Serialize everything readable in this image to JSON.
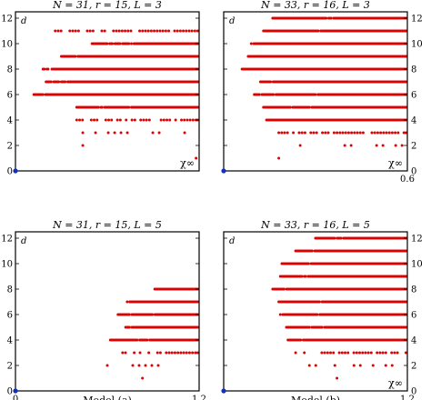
{
  "colors": {
    "points": "#e00000",
    "origin": "#1030c0",
    "frame": "#000000"
  },
  "chart_data": [
    {
      "type": "scatter",
      "title": "N = 31, r = 15, L = 3",
      "xlabel": "",
      "ylabel": "d",
      "corner_label": "χ∞",
      "xlim": [
        0,
        0.6
      ],
      "ylim": [
        0,
        12.5
      ],
      "x_tick_labels": [
        "",
        ""
      ],
      "y_ticks": [
        0,
        2,
        4,
        6,
        8,
        10,
        12
      ],
      "y_axis_side": "left",
      "rows": [
        {
          "d": 1,
          "x_start": 0.59,
          "x_end": 0.6,
          "density": "sparse"
        },
        {
          "d": 2,
          "x_start": 0.22,
          "x_end": 0.22,
          "density": "sparse"
        },
        {
          "d": 3,
          "x_start": 0.22,
          "x_end": 0.6,
          "density": "sparse"
        },
        {
          "d": 4,
          "x_start": 0.2,
          "x_end": 0.6,
          "density": "medium"
        },
        {
          "d": 5,
          "x_start": 0.2,
          "x_end": 0.6,
          "density": "dense"
        },
        {
          "d": 6,
          "x_start": 0.06,
          "x_end": 0.6,
          "density": "dense"
        },
        {
          "d": 7,
          "x_start": 0.1,
          "x_end": 0.6,
          "density": "dense"
        },
        {
          "d": 8,
          "x_start": 0.09,
          "x_end": 0.6,
          "density": "dense"
        },
        {
          "d": 9,
          "x_start": 0.15,
          "x_end": 0.6,
          "density": "dense"
        },
        {
          "d": 10,
          "x_start": 0.25,
          "x_end": 0.6,
          "density": "dense"
        },
        {
          "d": 11,
          "x_start": 0.13,
          "x_end": 0.6,
          "density": "medium"
        }
      ],
      "origin_point": [
        0,
        0
      ]
    },
    {
      "type": "scatter",
      "title": "N = 33, r = 16, L = 3",
      "xlabel": "",
      "ylabel": "d",
      "corner_label": "χ∞",
      "xlim": [
        0,
        0.6
      ],
      "ylim": [
        0,
        12.5
      ],
      "x_tick_labels": [
        "",
        "0.6"
      ],
      "y_ticks": [
        0,
        2,
        4,
        6,
        8,
        10,
        12
      ],
      "y_axis_side": "right",
      "rows": [
        {
          "d": 1,
          "x_start": 0.18,
          "x_end": 0.18,
          "density": "sparse"
        },
        {
          "d": 2,
          "x_start": 0.25,
          "x_end": 0.6,
          "density": "sparse"
        },
        {
          "d": 3,
          "x_start": 0.18,
          "x_end": 0.6,
          "density": "medium"
        },
        {
          "d": 4,
          "x_start": 0.14,
          "x_end": 0.6,
          "density": "dense"
        },
        {
          "d": 5,
          "x_start": 0.13,
          "x_end": 0.6,
          "density": "dense"
        },
        {
          "d": 6,
          "x_start": 0.1,
          "x_end": 0.6,
          "density": "dense"
        },
        {
          "d": 7,
          "x_start": 0.12,
          "x_end": 0.6,
          "density": "dense"
        },
        {
          "d": 8,
          "x_start": 0.06,
          "x_end": 0.6,
          "density": "dense"
        },
        {
          "d": 9,
          "x_start": 0.08,
          "x_end": 0.6,
          "density": "dense"
        },
        {
          "d": 10,
          "x_start": 0.09,
          "x_end": 0.6,
          "density": "dense"
        },
        {
          "d": 11,
          "x_start": 0.13,
          "x_end": 0.6,
          "density": "dense"
        },
        {
          "d": 12,
          "x_start": 0.16,
          "x_end": 0.6,
          "density": "dense"
        }
      ],
      "origin_point": [
        0,
        0
      ]
    },
    {
      "type": "scatter",
      "title": "N = 31, r = 15, L = 5",
      "xlabel": "Model (a)",
      "ylabel": "d",
      "corner_label": "",
      "xlim": [
        0,
        1.2
      ],
      "ylim": [
        0,
        12.5
      ],
      "x_tick_labels": [
        "0",
        "1.2"
      ],
      "y_ticks": [
        0,
        2,
        4,
        6,
        8,
        10,
        12
      ],
      "y_axis_side": "left",
      "rows": [
        {
          "d": 1,
          "x_start": 0.83,
          "x_end": 0.83,
          "density": "sparse"
        },
        {
          "d": 2,
          "x_start": 0.6,
          "x_end": 0.95,
          "density": "sparse"
        },
        {
          "d": 3,
          "x_start": 0.7,
          "x_end": 1.2,
          "density": "medium"
        },
        {
          "d": 4,
          "x_start": 0.62,
          "x_end": 1.2,
          "density": "dense"
        },
        {
          "d": 5,
          "x_start": 0.72,
          "x_end": 1.2,
          "density": "dense"
        },
        {
          "d": 6,
          "x_start": 0.67,
          "x_end": 1.2,
          "density": "dense"
        },
        {
          "d": 7,
          "x_start": 0.73,
          "x_end": 1.2,
          "density": "dense"
        },
        {
          "d": 8,
          "x_start": 0.91,
          "x_end": 1.2,
          "density": "dense"
        }
      ],
      "origin_point": [
        0,
        0
      ]
    },
    {
      "type": "scatter",
      "title": "N = 33, r = 16, L = 5",
      "xlabel": "Model (b)",
      "ylabel": "d",
      "corner_label": "χ∞",
      "xlim": [
        0,
        1.2
      ],
      "ylim": [
        0,
        12.5
      ],
      "x_tick_labels": [
        "",
        "1.2"
      ],
      "y_ticks": [
        0,
        2,
        4,
        6,
        8,
        10,
        12
      ],
      "y_axis_side": "right",
      "rows": [
        {
          "d": 1,
          "x_start": 0.74,
          "x_end": 0.74,
          "density": "sparse"
        },
        {
          "d": 2,
          "x_start": 0.56,
          "x_end": 1.2,
          "density": "sparse"
        },
        {
          "d": 3,
          "x_start": 0.47,
          "x_end": 1.2,
          "density": "medium"
        },
        {
          "d": 4,
          "x_start": 0.42,
          "x_end": 1.2,
          "density": "dense"
        },
        {
          "d": 5,
          "x_start": 0.41,
          "x_end": 1.2,
          "density": "dense"
        },
        {
          "d": 6,
          "x_start": 0.37,
          "x_end": 1.2,
          "density": "dense"
        },
        {
          "d": 7,
          "x_start": 0.36,
          "x_end": 1.2,
          "density": "dense"
        },
        {
          "d": 8,
          "x_start": 0.32,
          "x_end": 1.2,
          "density": "dense"
        },
        {
          "d": 9,
          "x_start": 0.37,
          "x_end": 1.2,
          "density": "dense"
        },
        {
          "d": 10,
          "x_start": 0.38,
          "x_end": 1.2,
          "density": "dense"
        },
        {
          "d": 11,
          "x_start": 0.47,
          "x_end": 1.2,
          "density": "dense"
        },
        {
          "d": 12,
          "x_start": 0.6,
          "x_end": 1.2,
          "density": "dense"
        }
      ],
      "origin_point": [
        0,
        0
      ]
    }
  ]
}
